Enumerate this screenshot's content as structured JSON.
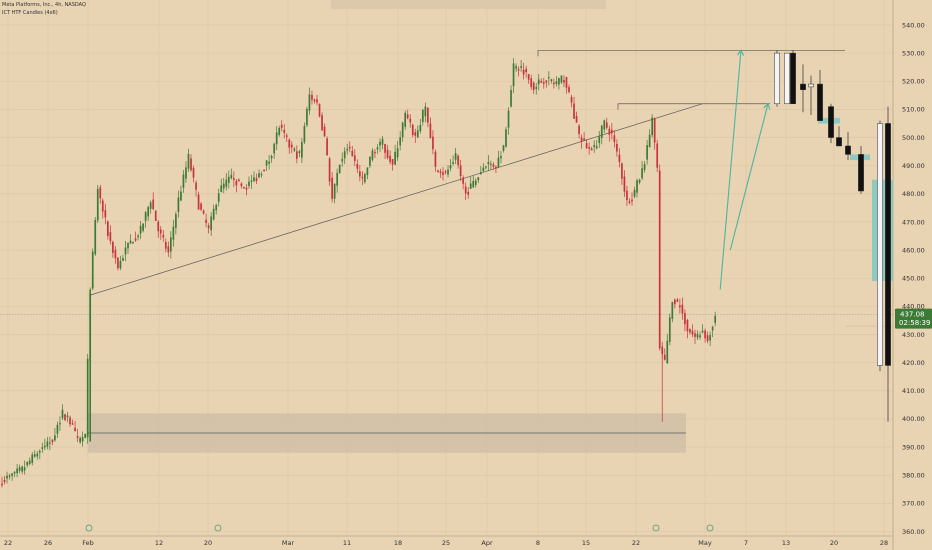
{
  "chart_data": {
    "type": "candlestick",
    "symbol_line": "Meta Platforms, Inc., 4h, NASDAQ",
    "indicator_line": "ICT HTF Candles (4x6)",
    "x_tick_labels": [
      "22",
      "26",
      "Feb",
      "12",
      "20",
      "Mar",
      "11",
      "18",
      "25",
      "Apr",
      "8",
      "15",
      "22",
      "May",
      "7",
      "13",
      "20",
      "28"
    ],
    "y_ticks": [
      360,
      370,
      380,
      390,
      400,
      410,
      420,
      430,
      440,
      450,
      460,
      470,
      480,
      490,
      500,
      510,
      520,
      530,
      540
    ],
    "ylim": [
      358,
      544
    ],
    "current_price": "437.08",
    "countdown": "02:58:39",
    "colors": {
      "background": "#e8d3b3",
      "up": "#3d7a35",
      "down": "#c8323c",
      "line": "#5a5a5a",
      "arrow": "#4db59c",
      "zone": "#cdbda5",
      "fvg": "#7ec8c2",
      "price_tag": "#3d7a35",
      "htf_up": "#f5f5f5",
      "htf_down": "#111111"
    },
    "price_path": [
      {
        "i": 0,
        "p": 378
      },
      {
        "i": 8,
        "p": 382
      },
      {
        "i": 14,
        "p": 388
      },
      {
        "i": 20,
        "p": 393
      },
      {
        "i": 24,
        "p": 402
      },
      {
        "i": 27,
        "p": 399
      },
      {
        "i": 30,
        "p": 392
      },
      {
        "i": 33,
        "p": 394
      },
      {
        "i": 35,
        "p": 446
      },
      {
        "i": 38,
        "p": 482
      },
      {
        "i": 42,
        "p": 466
      },
      {
        "i": 46,
        "p": 454
      },
      {
        "i": 50,
        "p": 462
      },
      {
        "i": 55,
        "p": 467
      },
      {
        "i": 59,
        "p": 478
      },
      {
        "i": 62,
        "p": 467
      },
      {
        "i": 66,
        "p": 459
      },
      {
        "i": 70,
        "p": 478
      },
      {
        "i": 74,
        "p": 493
      },
      {
        "i": 78,
        "p": 476
      },
      {
        "i": 82,
        "p": 467
      },
      {
        "i": 86,
        "p": 481
      },
      {
        "i": 91,
        "p": 486
      },
      {
        "i": 96,
        "p": 482
      },
      {
        "i": 101,
        "p": 486
      },
      {
        "i": 106,
        "p": 492
      },
      {
        "i": 110,
        "p": 504
      },
      {
        "i": 114,
        "p": 497
      },
      {
        "i": 118,
        "p": 493
      },
      {
        "i": 122,
        "p": 515
      },
      {
        "i": 125,
        "p": 512
      },
      {
        "i": 128,
        "p": 500
      },
      {
        "i": 131,
        "p": 478
      },
      {
        "i": 134,
        "p": 491
      },
      {
        "i": 137,
        "p": 497
      },
      {
        "i": 140,
        "p": 491
      },
      {
        "i": 143,
        "p": 484
      },
      {
        "i": 147,
        "p": 495
      },
      {
        "i": 151,
        "p": 498
      },
      {
        "i": 155,
        "p": 490
      },
      {
        "i": 160,
        "p": 508
      },
      {
        "i": 164,
        "p": 500
      },
      {
        "i": 168,
        "p": 511
      },
      {
        "i": 172,
        "p": 489
      },
      {
        "i": 176,
        "p": 487
      },
      {
        "i": 180,
        "p": 493
      },
      {
        "i": 184,
        "p": 480
      },
      {
        "i": 188,
        "p": 485
      },
      {
        "i": 192,
        "p": 491
      },
      {
        "i": 196,
        "p": 490
      },
      {
        "i": 199,
        "p": 497
      },
      {
        "i": 203,
        "p": 525
      },
      {
        "i": 207,
        "p": 524
      },
      {
        "i": 211,
        "p": 518
      },
      {
        "i": 215,
        "p": 521
      },
      {
        "i": 219,
        "p": 519
      },
      {
        "i": 223,
        "p": 521
      },
      {
        "i": 226,
        "p": 512
      },
      {
        "i": 229,
        "p": 500
      },
      {
        "i": 232,
        "p": 497
      },
      {
        "i": 235,
        "p": 496
      },
      {
        "i": 239,
        "p": 505
      },
      {
        "i": 242,
        "p": 501
      },
      {
        "i": 245,
        "p": 491
      },
      {
        "i": 248,
        "p": 477
      },
      {
        "i": 251,
        "p": 481
      },
      {
        "i": 254,
        "p": 488
      },
      {
        "i": 256,
        "p": 496
      },
      {
        "i": 258,
        "p": 507
      },
      {
        "i": 260,
        "p": 488
      },
      {
        "i": 261,
        "p": 425
      },
      {
        "i": 263,
        "p": 420
      },
      {
        "i": 266,
        "p": 443
      },
      {
        "i": 269,
        "p": 440
      },
      {
        "i": 272,
        "p": 432
      },
      {
        "i": 275,
        "p": 429
      },
      {
        "i": 278,
        "p": 431
      },
      {
        "i": 280,
        "p": 428
      },
      {
        "i": 283,
        "p": 437
      }
    ],
    "zone": {
      "low": 388,
      "high": 402
    },
    "support_level": 395,
    "resistance_level_1": 531,
    "resistance_level_2": 512,
    "trendline": [
      [
        35,
        444
      ],
      [
        262,
        512
      ]
    ],
    "projection_arrows": [
      {
        "from": [
          285,
          446
        ],
        "to": [
          305,
          531
        ]
      },
      {
        "from": [
          289,
          460
        ],
        "to": [
          330,
          512
        ]
      }
    ],
    "htf_candles": [
      {
        "o": 512,
        "h": 531,
        "l": 511,
        "c": 530
      },
      {
        "o": 512,
        "h": 530,
        "l": 512,
        "c": 530
      },
      {
        "o": 530,
        "h": 531,
        "l": 512,
        "c": 512
      },
      {
        "o": 519,
        "h": 526,
        "l": 509,
        "c": 517
      },
      {
        "o": 518,
        "h": 522,
        "l": 508,
        "c": 519
      },
      {
        "o": 519,
        "h": 524,
        "l": 507,
        "c": 506
      },
      {
        "o": 511,
        "h": 512,
        "l": 498,
        "c": 500
      },
      {
        "o": 500,
        "h": 504,
        "l": 497,
        "c": 497
      },
      {
        "o": 497,
        "h": 502,
        "l": 492,
        "c": 494
      },
      {
        "o": 494,
        "h": 497,
        "l": 480,
        "c": 481
      },
      {
        "o": 419,
        "h": 506,
        "l": 417,
        "c": 505
      },
      {
        "o": 505,
        "h": 511,
        "l": 399,
        "c": 419
      }
    ],
    "htf_fvgs": [
      {
        "low": 505,
        "high": 507
      },
      {
        "low": 492,
        "high": 494
      },
      {
        "low": 449,
        "high": 485
      }
    ]
  }
}
